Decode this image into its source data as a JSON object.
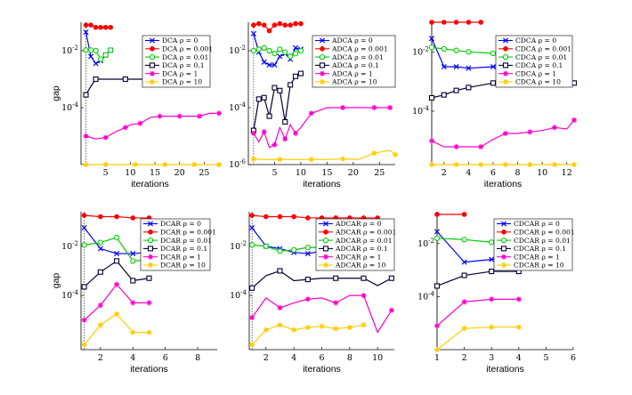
{
  "chart_data": [
    {
      "type": "line",
      "title": "",
      "xlabel": "iterations",
      "ylabel": "gap",
      "yscale": "log",
      "xlim": [
        0,
        28
      ],
      "ylim_exp": [
        -6,
        -1
      ],
      "xticks": [
        5,
        10,
        15,
        20,
        25
      ],
      "ytick_exps": [
        -2,
        -4
      ],
      "ytick_labels": [
        "10-2",
        "10-4"
      ],
      "vline_x": 1,
      "series": [
        {
          "name": "DCA ρ = 0",
          "color": "#0000ff",
          "marker": "x",
          "x": [
            1,
            2,
            3,
            4,
            5,
            6
          ],
          "y_exp": [
            -1.35,
            -2.2,
            -2.45,
            -2.35,
            -2.15,
            -1.98
          ]
        },
        {
          "name": "DCA ρ = 0.001",
          "color": "#ff0000",
          "marker": "o",
          "x": [
            1,
            2,
            3,
            4,
            5,
            6
          ],
          "y_exp": [
            -1.1,
            -1.1,
            -1.18,
            -1.18,
            -1.18,
            -1.18
          ]
        },
        {
          "name": "DCA ρ = 0.01",
          "color": "#00cc00",
          "marker": "o-open",
          "x": [
            1,
            2,
            3,
            4,
            5,
            6
          ],
          "y_exp": [
            -1.98,
            -1.98,
            -2.0,
            -2.3,
            -2.15,
            -1.98
          ]
        },
        {
          "name": "DCA ρ = 0.1",
          "color": "#000033",
          "marker": "s-open",
          "x": [
            1,
            2,
            3,
            6,
            9,
            12,
            15,
            18,
            21,
            24,
            25
          ],
          "y_exp": [
            -3.55,
            -3.25,
            -3.0,
            -3.0,
            -3.0,
            -3.0,
            -3.0,
            -3.0,
            -3.0,
            -3.0,
            -3.0
          ]
        },
        {
          "name": "DCA ρ = 1",
          "color": "#ff00cc",
          "marker": "*",
          "x": [
            1,
            3,
            5,
            7,
            9,
            10,
            12,
            14,
            16,
            18,
            20,
            22,
            24,
            26,
            28
          ],
          "y_exp": [
            -5.0,
            -5.1,
            -5.05,
            -4.85,
            -4.7,
            -4.6,
            -4.55,
            -4.35,
            -4.3,
            -4.3,
            -4.3,
            -4.3,
            -4.3,
            -4.2,
            -4.2
          ]
        },
        {
          "name": "DCA ρ = 10",
          "color": "#ffcc00",
          "marker": "*",
          "x": [
            1,
            3,
            5,
            8,
            11,
            14,
            17,
            20,
            23,
            26,
            28
          ],
          "y_exp": [
            -6.0,
            -6.0,
            -6.0,
            -6.0,
            -6.0,
            -6.0,
            -6.0,
            -6.0,
            -6.0,
            -6.0,
            -6.0
          ]
        }
      ]
    },
    {
      "type": "line",
      "title": "",
      "xlabel": "iterations",
      "ylabel": "",
      "yscale": "log",
      "xlim": [
        0,
        28
      ],
      "ylim_exp": [
        -6,
        -1
      ],
      "xticks": [
        5,
        10,
        15,
        20,
        25
      ],
      "ytick_exps": [
        -2,
        -4,
        -6
      ],
      "ytick_labels": [
        "10-2",
        "10-4",
        "10-6"
      ],
      "vline_x": 1,
      "series": [
        {
          "name": "ADCA ρ = 0",
          "color": "#0000ff",
          "marker": "x",
          "x": [
            1,
            2,
            3,
            4,
            5,
            6,
            7,
            8,
            9,
            10
          ],
          "y_exp": [
            -1.4,
            -2.05,
            -2.4,
            -2.5,
            -2.5,
            -2.2,
            -2.1,
            -2.3,
            -1.9,
            -1.95
          ]
        },
        {
          "name": "ADCA ρ = 0.001",
          "color": "#ff0000",
          "marker": "o",
          "x": [
            1,
            2,
            3,
            4,
            5,
            6,
            7,
            8,
            9,
            10
          ],
          "y_exp": [
            -1.1,
            -1.05,
            -1.1,
            -1.3,
            -1.1,
            -1.05,
            -1.1,
            -1.1,
            -1.05,
            -1.05
          ]
        },
        {
          "name": "ADCA ρ = 0.01",
          "color": "#00cc00",
          "marker": "o-open",
          "x": [
            1,
            2,
            3,
            4,
            5,
            6,
            7,
            8,
            9,
            10
          ],
          "y_exp": [
            -2.0,
            -1.95,
            -1.9,
            -2.0,
            -2.1,
            -1.95,
            -2.05,
            -2.2,
            -2.1,
            -2.0
          ]
        },
        {
          "name": "ADCA ρ = 0.1",
          "color": "#000033",
          "marker": "s-open",
          "x": [
            1,
            2,
            3,
            4,
            5,
            6,
            7,
            8,
            9,
            10
          ],
          "y_exp": [
            -4.8,
            -3.7,
            -3.65,
            -4.3,
            -3.3,
            -3.4,
            -4.5,
            -3.2,
            -2.9,
            -2.8
          ]
        },
        {
          "name": "ADCA ρ = 1",
          "color": "#ff00cc",
          "marker": "*",
          "x": [
            1,
            2,
            3,
            4,
            5,
            6,
            7,
            8,
            9,
            10,
            12,
            15,
            18,
            21,
            24,
            27
          ],
          "y_exp": [
            -4.9,
            -5.2,
            -4.85,
            -5.4,
            -5.3,
            -4.7,
            -5.1,
            -4.6,
            -4.9,
            -4.7,
            -4.2,
            -4.0,
            -4.0,
            -4.0,
            -4.0,
            -4.0
          ]
        },
        {
          "name": "ADCA ρ = 10",
          "color": "#ffcc00",
          "marker": "*",
          "x": [
            1,
            3,
            6,
            9,
            12,
            15,
            18,
            21,
            24,
            27,
            28
          ],
          "y_exp": [
            -5.8,
            -5.82,
            -5.82,
            -5.82,
            -5.82,
            -5.82,
            -5.8,
            -5.82,
            -5.6,
            -5.5,
            -5.65
          ]
        }
      ]
    },
    {
      "type": "line",
      "title": "",
      "xlabel": "iterations",
      "ylabel": "",
      "yscale": "log",
      "xlim": [
        1,
        12.6
      ],
      "ylim_exp": [
        -5.8,
        -1
      ],
      "xticks": [
        2,
        4,
        6,
        8,
        10,
        12
      ],
      "ytick_exps": [
        -2,
        -4
      ],
      "ytick_labels": [
        "10-2",
        "10-4"
      ],
      "vline_x": 1,
      "series": [
        {
          "name": "CDCA ρ = 0",
          "color": "#0000ff",
          "marker": "x",
          "x": [
            1,
            2,
            3,
            4,
            6,
            8
          ],
          "y_exp": [
            -1.55,
            -2.5,
            -2.5,
            -2.55,
            -2.5,
            -2.5
          ]
        },
        {
          "name": "CDCA ρ = 0.001",
          "color": "#ff0000",
          "marker": "o",
          "x": [
            1,
            2,
            3,
            4,
            5
          ],
          "y_exp": [
            -1.0,
            -1.0,
            -1.0,
            -1.0,
            -1.0
          ]
        },
        {
          "name": "CDCA ρ = 0.01",
          "color": "#00cc00",
          "marker": "o-open",
          "x": [
            1,
            2,
            3,
            4,
            6,
            8
          ],
          "y_exp": [
            -1.85,
            -1.9,
            -1.95,
            -2.0,
            -2.05,
            -2.05
          ]
        },
        {
          "name": "CDCA ρ = 0.1",
          "color": "#000033",
          "marker": "s-open",
          "x": [
            1,
            2,
            3,
            4,
            6,
            8,
            10,
            12,
            12.6
          ],
          "y_exp": [
            -3.55,
            -3.45,
            -3.3,
            -3.2,
            -3.05,
            -3.05,
            -3.05,
            -3.05,
            -3.05
          ]
        },
        {
          "name": "CDCA ρ = 1",
          "color": "#ff00cc",
          "marker": "*",
          "x": [
            1,
            2,
            3,
            4,
            5,
            6,
            7,
            8,
            9,
            10,
            11,
            12,
            12.6
          ],
          "y_exp": [
            -5.0,
            -5.2,
            -5.2,
            -5.2,
            -5.2,
            -4.95,
            -4.75,
            -4.75,
            -4.7,
            -4.65,
            -4.55,
            -4.6,
            -4.3
          ]
        },
        {
          "name": "CDCA ρ = 10",
          "color": "#ffcc00",
          "marker": "*",
          "x": [
            1,
            3,
            5,
            7,
            9,
            11,
            12.6
          ],
          "y_exp": [
            -5.8,
            -5.8,
            -5.8,
            -5.8,
            -5.8,
            -5.8,
            -5.8
          ]
        }
      ]
    },
    {
      "type": "line",
      "title": "",
      "xlabel": "iterations",
      "ylabel": "gap",
      "yscale": "log",
      "xlim": [
        0.8,
        9.2
      ],
      "ylim_exp": [
        -6.2,
        -0.6
      ],
      "xticks": [
        2,
        4,
        6,
        8
      ],
      "ytick_exps": [
        -2,
        -4
      ],
      "ytick_labels": [
        "10-2",
        "10-4"
      ],
      "vline_x": 1,
      "series": [
        {
          "name": "DCAR ρ = 0",
          "color": "#0000ff",
          "marker": "x",
          "x": [
            1,
            2,
            3,
            4,
            5
          ],
          "y_exp": [
            -1.25,
            -2.1,
            -2.3,
            -2.3,
            -2.25
          ]
        },
        {
          "name": "DCAR ρ = 0.001",
          "color": "#ff0000",
          "marker": "o",
          "x": [
            1,
            2,
            3,
            4,
            5
          ],
          "y_exp": [
            -0.75,
            -0.8,
            -0.8,
            -0.85,
            -0.85
          ]
        },
        {
          "name": "DCAR ρ = 0.01",
          "color": "#00cc00",
          "marker": "o-open",
          "x": [
            1,
            2,
            3,
            4,
            5
          ],
          "y_exp": [
            -1.95,
            -1.85,
            -1.65,
            -2.6,
            -2.55
          ]
        },
        {
          "name": "DCAR ρ = 0.1",
          "color": "#000033",
          "marker": "s-open",
          "x": [
            1,
            2,
            3,
            4,
            5
          ],
          "y_exp": [
            -3.65,
            -3.05,
            -2.6,
            -3.4,
            -3.3
          ]
        },
        {
          "name": "DCAR ρ = 1",
          "color": "#ff00cc",
          "marker": "*",
          "x": [
            1,
            2,
            3,
            4,
            5
          ],
          "y_exp": [
            -5.0,
            -4.4,
            -3.55,
            -4.3,
            -4.3
          ]
        },
        {
          "name": "DCAR ρ = 10",
          "color": "#ffcc00",
          "marker": "*",
          "x": [
            1,
            2,
            3,
            4,
            5
          ],
          "y_exp": [
            -6.0,
            -5.2,
            -4.75,
            -5.5,
            -5.5
          ]
        }
      ]
    },
    {
      "type": "line",
      "title": "",
      "xlabel": "iterations",
      "ylabel": "",
      "yscale": "log",
      "xlim": [
        0.8,
        11.2
      ],
      "ylim_exp": [
        -6.2,
        -0.6
      ],
      "xticks": [
        2,
        4,
        6,
        8,
        10
      ],
      "ytick_exps": [
        -2,
        -4
      ],
      "ytick_labels": [
        "10-2",
        "10-4"
      ],
      "vline_x": 1,
      "series": [
        {
          "name": "ADCAR ρ = 0",
          "color": "#0000ff",
          "marker": "x",
          "x": [
            1,
            2,
            3,
            4,
            5,
            6,
            7,
            8,
            9,
            10
          ],
          "y_exp": [
            -1.25,
            -2.0,
            -2.1,
            -2.25,
            -2.3,
            -2.2,
            -2.2,
            -2.2,
            -2.2,
            -2.2
          ]
        },
        {
          "name": "ADCAR ρ = 0.001",
          "color": "#ff0000",
          "marker": "o",
          "x": [
            1,
            2,
            3,
            4,
            5,
            6,
            7,
            8,
            9,
            10
          ],
          "y_exp": [
            -0.75,
            -0.8,
            -0.8,
            -0.8,
            -0.85,
            -0.85,
            -0.85,
            -0.85,
            -0.85,
            -0.85
          ]
        },
        {
          "name": "ADCAR ρ = 0.01",
          "color": "#00cc00",
          "marker": "o-open",
          "x": [
            1,
            2,
            3,
            4,
            5,
            6,
            7
          ],
          "y_exp": [
            -1.95,
            -2.0,
            -2.2,
            -2.15,
            -2.05,
            -2.05,
            -2.05
          ]
        },
        {
          "name": "ADCAR ρ = 0.1",
          "color": "#000033",
          "marker": "s-open",
          "x": [
            1,
            2,
            3,
            4,
            5,
            6,
            7,
            8,
            9,
            10,
            11
          ],
          "y_exp": [
            -3.7,
            -3.2,
            -3.0,
            -3.4,
            -3.35,
            -3.3,
            -3.3,
            -3.3,
            -3.3,
            -3.6,
            -3.3
          ]
        },
        {
          "name": "ADCAR ρ = 1",
          "color": "#ff00cc",
          "marker": "*",
          "x": [
            1,
            2,
            3,
            4,
            5,
            6,
            7,
            8,
            9,
            10,
            11
          ],
          "y_exp": [
            -4.9,
            -4.1,
            -4.5,
            -4.3,
            -4.15,
            -4.1,
            -4.3,
            -4.0,
            -4.0,
            -5.5,
            -4.6
          ]
        },
        {
          "name": "ADCAR ρ = 10",
          "color": "#ffcc00",
          "marker": "*",
          "x": [
            1,
            2,
            3,
            4,
            5,
            6,
            7,
            8,
            9
          ],
          "y_exp": [
            -6.0,
            -5.4,
            -5.2,
            -5.4,
            -5.3,
            -5.25,
            -5.35,
            -5.3,
            -5.2
          ]
        }
      ]
    },
    {
      "type": "line",
      "title": "",
      "xlabel": "iterations",
      "ylabel": "",
      "yscale": "log",
      "xlim": [
        1,
        6
      ],
      "ylim_exp": [
        -6,
        -0.8
      ],
      "xticks": [
        1,
        2,
        3,
        4,
        5,
        6
      ],
      "ytick_exps": [
        -2,
        -4
      ],
      "ytick_labels": [
        "10-2",
        "10-4"
      ],
      "vline_x": 1,
      "series": [
        {
          "name": "CDCAR ρ = 0",
          "color": "#0000ff",
          "marker": "x",
          "x": [
            1,
            2,
            3,
            4
          ],
          "y_exp": [
            -1.55,
            -2.7,
            -2.6,
            -2.5
          ]
        },
        {
          "name": "CDCAR ρ = 0.001",
          "color": "#ff0000",
          "marker": "o",
          "x": [
            1,
            2
          ],
          "y_exp": [
            -0.9,
            -0.9
          ]
        },
        {
          "name": "CDCAR ρ = 0.01",
          "color": "#00cc00",
          "marker": "o-open",
          "x": [
            1,
            2,
            3,
            4
          ],
          "y_exp": [
            -1.8,
            -1.85,
            -1.95,
            -2.05
          ]
        },
        {
          "name": "CDCAR ρ = 0.1",
          "color": "#000033",
          "marker": "s-open",
          "x": [
            1,
            2,
            3,
            4
          ],
          "y_exp": [
            -3.6,
            -3.2,
            -3.05,
            -3.05
          ]
        },
        {
          "name": "CDCAR ρ = 1",
          "color": "#ff00cc",
          "marker": "*",
          "x": [
            1,
            2,
            3,
            4
          ],
          "y_exp": [
            -5.1,
            -4.2,
            -4.1,
            -4.1
          ]
        },
        {
          "name": "CDCAR ρ = 10",
          "color": "#ffcc00",
          "marker": "*",
          "x": [
            1,
            2,
            3,
            4
          ],
          "y_exp": [
            -6.0,
            -5.2,
            -5.15,
            -5.15
          ]
        }
      ]
    }
  ]
}
